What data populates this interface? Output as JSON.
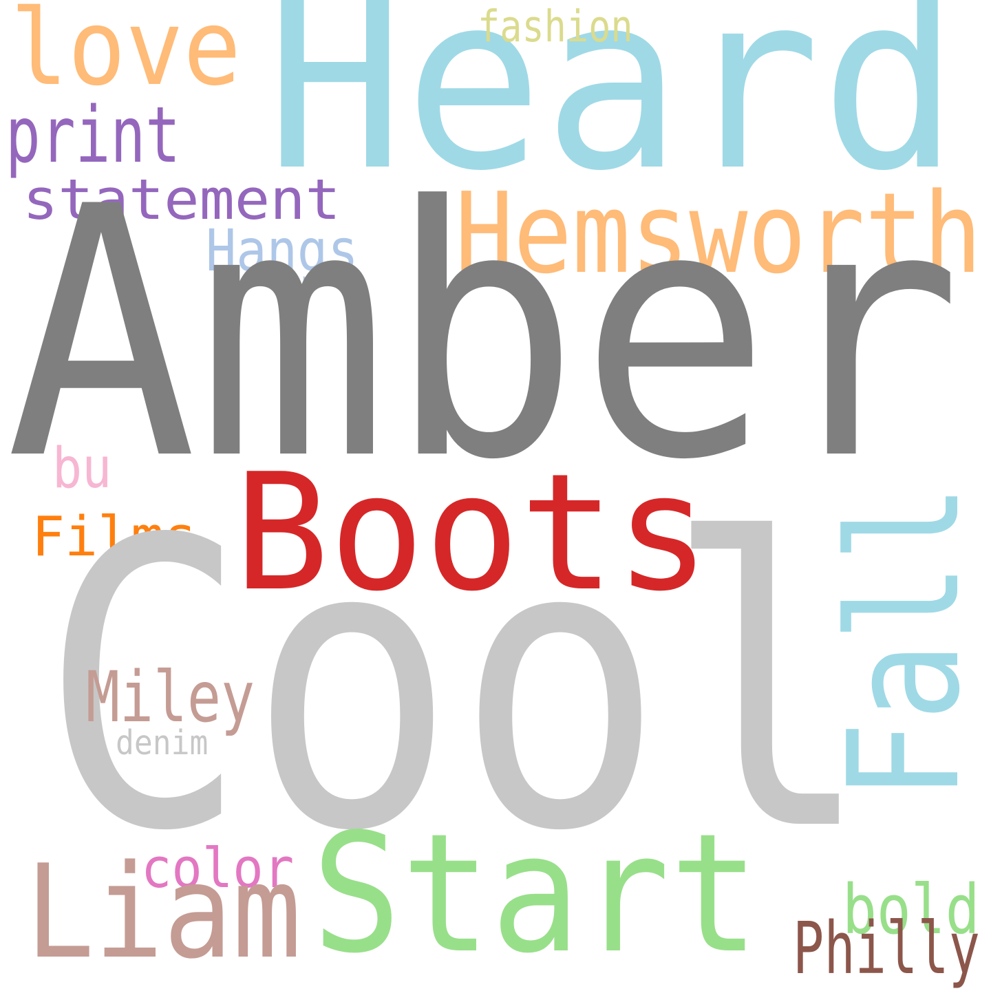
{
  "word_cloud": {
    "background": "#ffffff",
    "words": [
      {
        "text": "Heard",
        "color": "#9fd9e6"
      },
      {
        "text": "love",
        "color": "#ffbb78"
      },
      {
        "text": "fashion",
        "color": "#dbdb8d"
      },
      {
        "text": "print",
        "color": "#9467bd"
      },
      {
        "text": "statement",
        "color": "#9467bd"
      },
      {
        "text": "Hemsworth",
        "color": "#ffbb78"
      },
      {
        "text": "Hangs",
        "color": "#aec7e8"
      },
      {
        "text": "Amber",
        "color": "#7f7f7f"
      },
      {
        "text": "bu",
        "color": "#f7b6d2"
      },
      {
        "text": "Boots",
        "color": "#d62728"
      },
      {
        "text": "Films",
        "color": "#ff7f0e"
      },
      {
        "text": "Fall",
        "color": "#9fd9e6"
      },
      {
        "text": "Cool",
        "color": "#c7c7c7"
      },
      {
        "text": "Miley",
        "color": "#c49c94"
      },
      {
        "text": "denim",
        "color": "#c7c7c7"
      },
      {
        "text": "color",
        "color": "#e377c2"
      },
      {
        "text": "Start",
        "color": "#98df8a"
      },
      {
        "text": "Liam",
        "color": "#c49c94"
      },
      {
        "text": "bold",
        "color": "#98df8a"
      },
      {
        "text": "Philly",
        "color": "#8c564b"
      }
    ]
  }
}
